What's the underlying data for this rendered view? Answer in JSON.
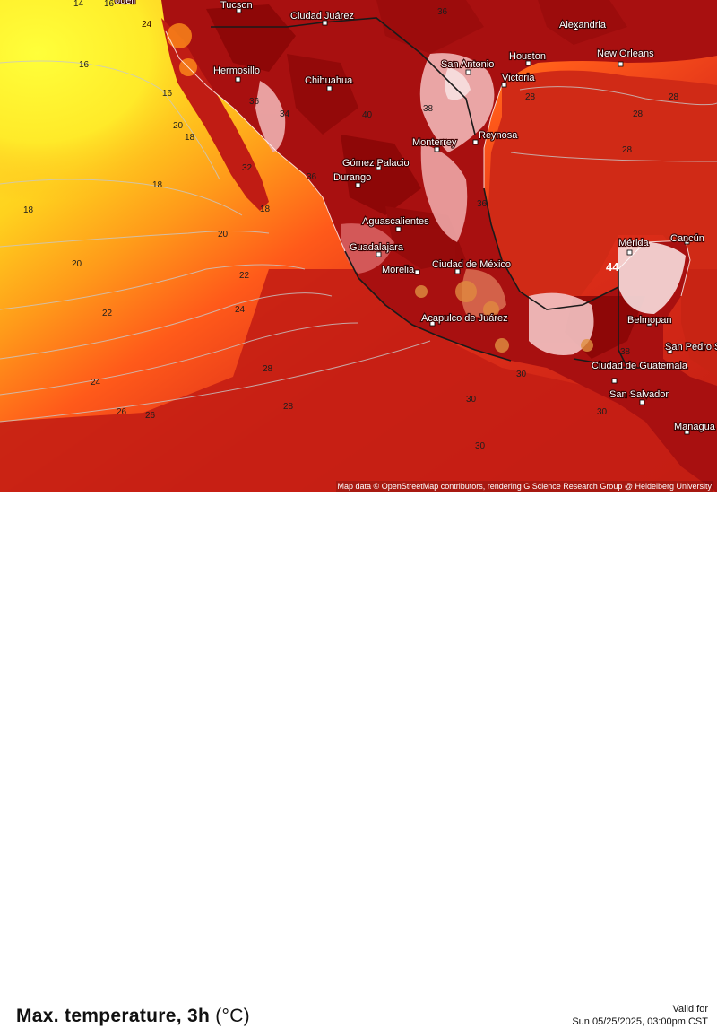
{
  "map": {
    "attribution": "Map data © OpenStreetMap contributors, rendering GIScience Research Group @ Heidelberg University",
    "palette": {
      "yellow": "#ffff2a",
      "orange": "#ff8c1a",
      "red_light": "#ff4a1a",
      "red": "#d42a14",
      "dark_red": "#b21212",
      "deep_red": "#8e0808",
      "pink": "#f0b4b4",
      "white": "#fff0f0"
    },
    "cities": [
      "Tucson",
      "Ciudad Juárez",
      "Hermosillo",
      "Chihuahua",
      "San Antonio",
      "Houston",
      "New Orleans",
      "Victoria",
      "Monterrey",
      "Reynosa",
      "Gómez Palacio",
      "Durango",
      "Aguascalientes",
      "Guadalajara",
      "Morelia",
      "Ciudad de México",
      "Acapulco de Juárez",
      "Mérida",
      "Cancún",
      "Belmopan",
      "San Pedro Sula",
      "Ciudad de Guatemala",
      "San Salvador",
      "Managua",
      "Alexandria"
    ],
    "isotherm_labels": [
      "14",
      "16",
      "24",
      "16",
      "16",
      "20",
      "18",
      "18",
      "18",
      "18",
      "20",
      "20",
      "22",
      "22",
      "24",
      "24",
      "26",
      "26",
      "28",
      "28",
      "28",
      "28",
      "28",
      "28",
      "30",
      "30",
      "30",
      "30",
      "32",
      "34",
      "36",
      "36",
      "36",
      "36",
      "38",
      "38",
      "40",
      "44"
    ],
    "partial_labels": [
      "ouell",
      "Tucson"
    ]
  },
  "title": {
    "text": "Max. temperature, 3h",
    "unit": "(°C)"
  },
  "valid": {
    "label": "Valid for",
    "datetime": "Sun 05/25/2025, 03:00pm CST"
  }
}
